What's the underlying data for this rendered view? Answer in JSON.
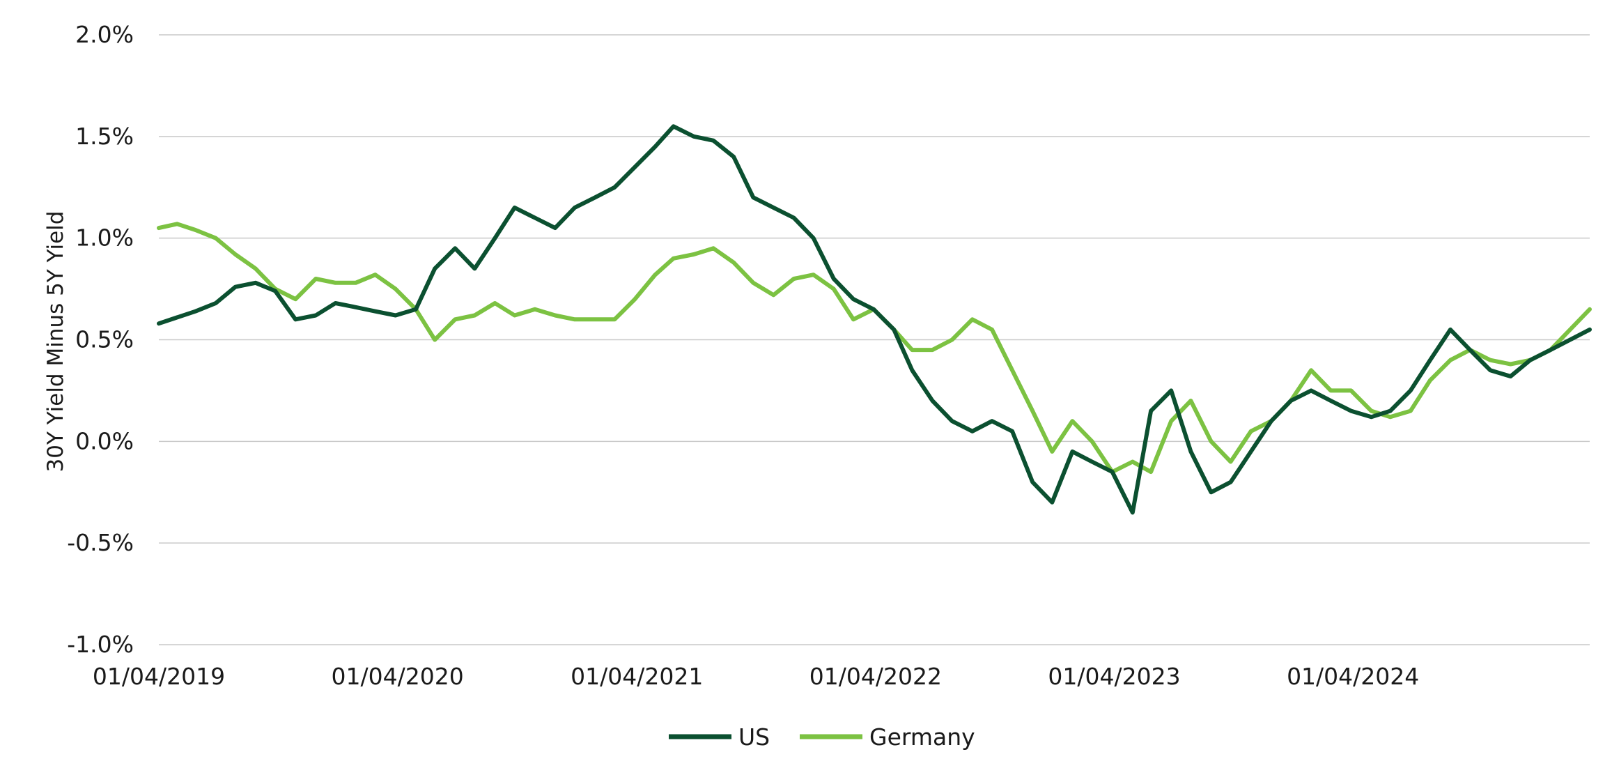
{
  "chart_data": {
    "type": "line",
    "title": "",
    "xlabel": "",
    "ylabel": "30Y Yield Minus 5Y Yield",
    "ylim": [
      -1.0,
      2.0
    ],
    "xlim": [
      "2019-01-04",
      "2024-12-31"
    ],
    "grid": true,
    "legend": "bottom-center",
    "y_ticks": [
      {
        "value": 2.0,
        "label": "2.0%"
      },
      {
        "value": 1.5,
        "label": "1.5%"
      },
      {
        "value": 1.0,
        "label": "1.0%"
      },
      {
        "value": 0.5,
        "label": "0.5%"
      },
      {
        "value": 0.0,
        "label": "0.0%"
      },
      {
        "value": -0.5,
        "label": "-0.5%"
      },
      {
        "value": -1.0,
        "label": "-1.0%"
      }
    ],
    "x_ticks": [
      {
        "date": "2019-01-04",
        "label": "01/04/2019"
      },
      {
        "date": "2020-01-04",
        "label": "01/04/2020"
      },
      {
        "date": "2021-01-04",
        "label": "01/04/2021"
      },
      {
        "date": "2022-01-04",
        "label": "01/04/2022"
      },
      {
        "date": "2023-01-04",
        "label": "01/04/2023"
      },
      {
        "date": "2024-01-04",
        "label": "01/04/2024"
      }
    ],
    "series": [
      {
        "name": "US",
        "color": "#0b5030",
        "points": [
          [
            "2019-01-04",
            0.58
          ],
          [
            "2019-02-01",
            0.61
          ],
          [
            "2019-03-01",
            0.64
          ],
          [
            "2019-04-01",
            0.68
          ],
          [
            "2019-05-01",
            0.76
          ],
          [
            "2019-06-01",
            0.78
          ],
          [
            "2019-07-01",
            0.74
          ],
          [
            "2019-08-01",
            0.6
          ],
          [
            "2019-09-01",
            0.62
          ],
          [
            "2019-10-01",
            0.68
          ],
          [
            "2019-11-01",
            0.66
          ],
          [
            "2019-12-01",
            0.64
          ],
          [
            "2020-01-01",
            0.62
          ],
          [
            "2020-02-01",
            0.65
          ],
          [
            "2020-03-01",
            0.85
          ],
          [
            "2020-04-01",
            0.95
          ],
          [
            "2020-05-01",
            0.85
          ],
          [
            "2020-06-01",
            1.0
          ],
          [
            "2020-07-01",
            1.15
          ],
          [
            "2020-08-01",
            1.1
          ],
          [
            "2020-09-01",
            1.05
          ],
          [
            "2020-10-01",
            1.15
          ],
          [
            "2020-11-01",
            1.2
          ],
          [
            "2020-12-01",
            1.25
          ],
          [
            "2021-01-01",
            1.35
          ],
          [
            "2021-02-01",
            1.45
          ],
          [
            "2021-03-01",
            1.55
          ],
          [
            "2021-04-01",
            1.5
          ],
          [
            "2021-05-01",
            1.48
          ],
          [
            "2021-06-01",
            1.4
          ],
          [
            "2021-07-01",
            1.2
          ],
          [
            "2021-08-01",
            1.15
          ],
          [
            "2021-09-01",
            1.1
          ],
          [
            "2021-10-01",
            1.0
          ],
          [
            "2021-11-01",
            0.8
          ],
          [
            "2021-12-01",
            0.7
          ],
          [
            "2022-01-01",
            0.65
          ],
          [
            "2022-02-01",
            0.55
          ],
          [
            "2022-03-01",
            0.35
          ],
          [
            "2022-04-01",
            0.2
          ],
          [
            "2022-05-01",
            0.1
          ],
          [
            "2022-06-01",
            0.05
          ],
          [
            "2022-07-01",
            0.1
          ],
          [
            "2022-08-01",
            0.05
          ],
          [
            "2022-09-01",
            -0.2
          ],
          [
            "2022-10-01",
            -0.3
          ],
          [
            "2022-11-01",
            -0.05
          ],
          [
            "2022-12-01",
            -0.1
          ],
          [
            "2023-01-01",
            -0.15
          ],
          [
            "2023-02-01",
            -0.35
          ],
          [
            "2023-03-01",
            0.15
          ],
          [
            "2023-04-01",
            0.25
          ],
          [
            "2023-05-01",
            -0.05
          ],
          [
            "2023-06-01",
            -0.25
          ],
          [
            "2023-07-01",
            -0.2
          ],
          [
            "2023-08-01",
            -0.05
          ],
          [
            "2023-09-01",
            0.1
          ],
          [
            "2023-10-01",
            0.2
          ],
          [
            "2023-11-01",
            0.25
          ],
          [
            "2023-12-01",
            0.2
          ],
          [
            "2024-01-01",
            0.15
          ],
          [
            "2024-02-01",
            0.12
          ],
          [
            "2024-03-01",
            0.15
          ],
          [
            "2024-04-01",
            0.25
          ],
          [
            "2024-05-01",
            0.4
          ],
          [
            "2024-06-01",
            0.55
          ],
          [
            "2024-07-01",
            0.45
          ],
          [
            "2024-08-01",
            0.35
          ],
          [
            "2024-09-01",
            0.32
          ],
          [
            "2024-10-01",
            0.4
          ],
          [
            "2024-11-01",
            0.45
          ],
          [
            "2024-12-31",
            0.55
          ]
        ]
      },
      {
        "name": "Germany",
        "color": "#7cc242",
        "points": [
          [
            "2019-01-04",
            1.05
          ],
          [
            "2019-02-01",
            1.07
          ],
          [
            "2019-03-01",
            1.04
          ],
          [
            "2019-04-01",
            1.0
          ],
          [
            "2019-05-01",
            0.92
          ],
          [
            "2019-06-01",
            0.85
          ],
          [
            "2019-07-01",
            0.75
          ],
          [
            "2019-08-01",
            0.7
          ],
          [
            "2019-09-01",
            0.8
          ],
          [
            "2019-10-01",
            0.78
          ],
          [
            "2019-11-01",
            0.78
          ],
          [
            "2019-12-01",
            0.82
          ],
          [
            "2020-01-01",
            0.75
          ],
          [
            "2020-02-01",
            0.65
          ],
          [
            "2020-03-01",
            0.5
          ],
          [
            "2020-04-01",
            0.6
          ],
          [
            "2020-05-01",
            0.62
          ],
          [
            "2020-06-01",
            0.68
          ],
          [
            "2020-07-01",
            0.62
          ],
          [
            "2020-08-01",
            0.65
          ],
          [
            "2020-09-01",
            0.62
          ],
          [
            "2020-10-01",
            0.6
          ],
          [
            "2020-11-01",
            0.6
          ],
          [
            "2020-12-01",
            0.6
          ],
          [
            "2021-01-01",
            0.7
          ],
          [
            "2021-02-01",
            0.82
          ],
          [
            "2021-03-01",
            0.9
          ],
          [
            "2021-04-01",
            0.92
          ],
          [
            "2021-05-01",
            0.95
          ],
          [
            "2021-06-01",
            0.88
          ],
          [
            "2021-07-01",
            0.78
          ],
          [
            "2021-08-01",
            0.72
          ],
          [
            "2021-09-01",
            0.8
          ],
          [
            "2021-10-01",
            0.82
          ],
          [
            "2021-11-01",
            0.75
          ],
          [
            "2021-12-01",
            0.6
          ],
          [
            "2022-01-01",
            0.65
          ],
          [
            "2022-02-01",
            0.55
          ],
          [
            "2022-03-01",
            0.45
          ],
          [
            "2022-04-01",
            0.45
          ],
          [
            "2022-05-01",
            0.5
          ],
          [
            "2022-06-01",
            0.6
          ],
          [
            "2022-07-01",
            0.55
          ],
          [
            "2022-08-01",
            0.35
          ],
          [
            "2022-09-01",
            0.15
          ],
          [
            "2022-10-01",
            -0.05
          ],
          [
            "2022-11-01",
            0.1
          ],
          [
            "2022-12-01",
            0.0
          ],
          [
            "2023-01-01",
            -0.15
          ],
          [
            "2023-02-01",
            -0.1
          ],
          [
            "2023-03-01",
            -0.15
          ],
          [
            "2023-04-01",
            0.1
          ],
          [
            "2023-05-01",
            0.2
          ],
          [
            "2023-06-01",
            0.0
          ],
          [
            "2023-07-01",
            -0.1
          ],
          [
            "2023-08-01",
            0.05
          ],
          [
            "2023-09-01",
            0.1
          ],
          [
            "2023-10-01",
            0.2
          ],
          [
            "2023-11-01",
            0.35
          ],
          [
            "2023-12-01",
            0.25
          ],
          [
            "2024-01-01",
            0.25
          ],
          [
            "2024-02-01",
            0.15
          ],
          [
            "2024-03-01",
            0.12
          ],
          [
            "2024-04-01",
            0.15
          ],
          [
            "2024-05-01",
            0.3
          ],
          [
            "2024-06-01",
            0.4
          ],
          [
            "2024-07-01",
            0.45
          ],
          [
            "2024-08-01",
            0.4
          ],
          [
            "2024-09-01",
            0.38
          ],
          [
            "2024-10-01",
            0.4
          ],
          [
            "2024-11-01",
            0.45
          ],
          [
            "2024-12-31",
            0.65
          ]
        ]
      }
    ]
  }
}
